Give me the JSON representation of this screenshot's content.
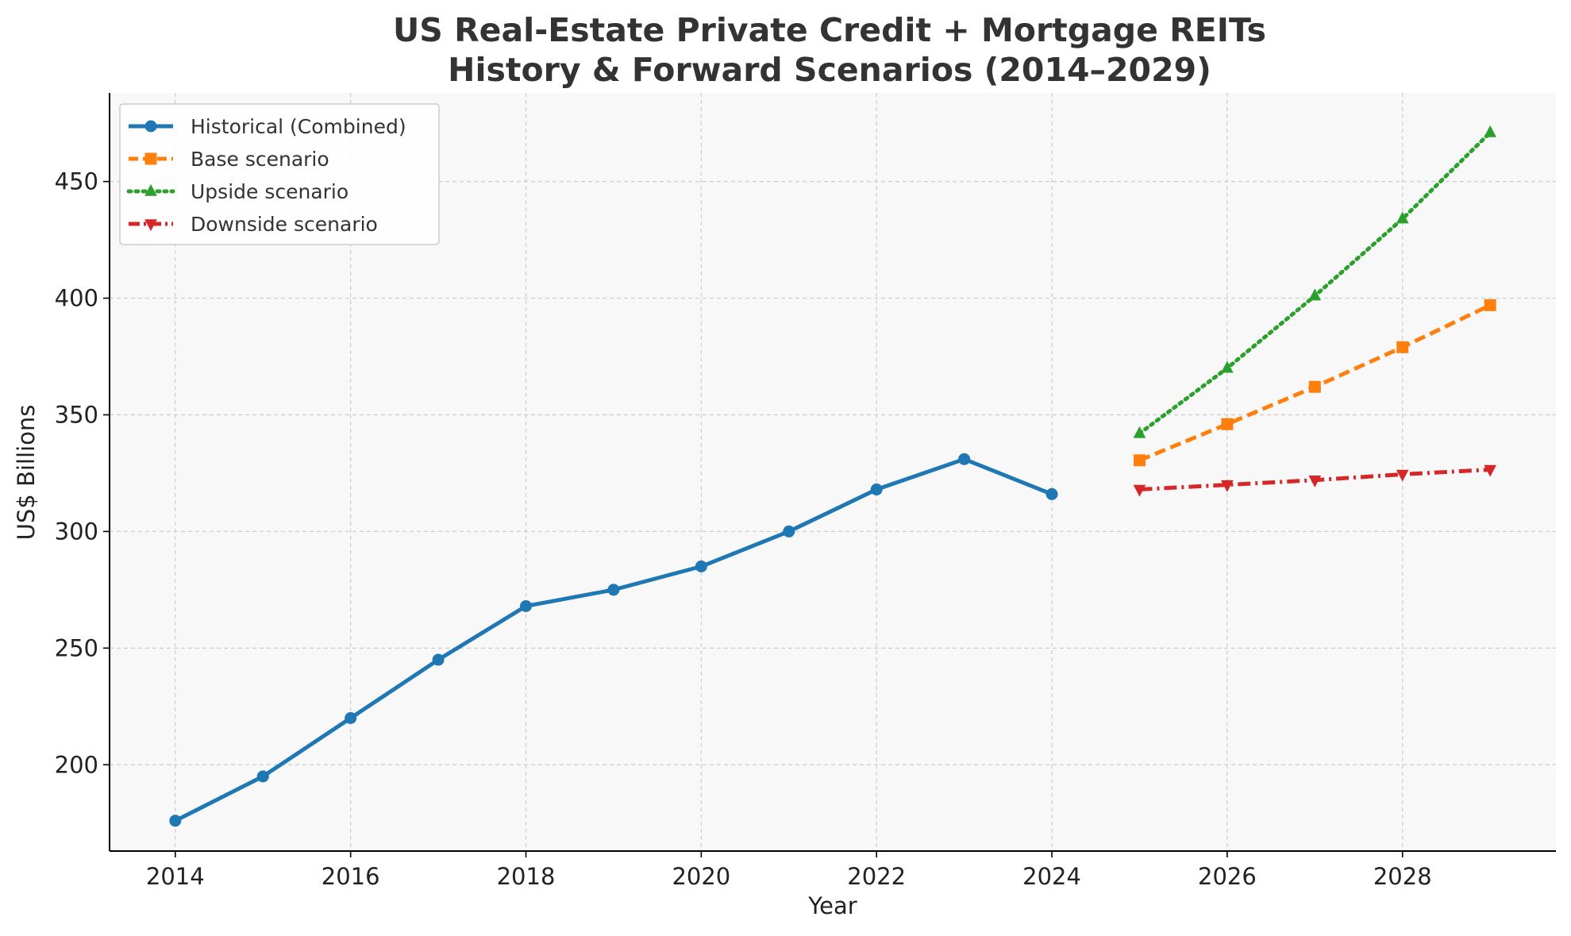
{
  "chart_data": {
    "type": "line",
    "title_line1": "US Real-Estate Private Credit + Mortgage REITs",
    "title_line2": "History & Forward Scenarios (2014–2029)",
    "xlabel": "Year",
    "ylabel": "US$ Billions",
    "xlim": [
      2013.25,
      2029.75
    ],
    "ylim": [
      163,
      488
    ],
    "xticks": [
      2014,
      2016,
      2018,
      2020,
      2022,
      2024,
      2026,
      2028
    ],
    "yticks": [
      200,
      250,
      300,
      350,
      400,
      450
    ],
    "grid": true,
    "legend_position": "top-left",
    "background": "#f8f8f8",
    "series": [
      {
        "name": "Historical (Combined)",
        "color": "#1f77b4",
        "style": "solid",
        "marker": "circle",
        "x": [
          2014,
          2015,
          2016,
          2017,
          2018,
          2019,
          2020,
          2021,
          2022,
          2023,
          2024
        ],
        "values": [
          176,
          195,
          220,
          245,
          268,
          275,
          285,
          300,
          318,
          331,
          316
        ]
      },
      {
        "name": "Base scenario",
        "color": "#ff7f0e",
        "style": "dashed",
        "marker": "square",
        "x": [
          2025,
          2026,
          2027,
          2028,
          2029
        ],
        "values": [
          330.5,
          346,
          362,
          379,
          397
        ]
      },
      {
        "name": "Upside scenario",
        "color": "#2ca02c",
        "style": "dotted",
        "marker": "triangle-up",
        "x": [
          2025,
          2026,
          2027,
          2028,
          2029
        ],
        "values": [
          342,
          370,
          401,
          434,
          471
        ]
      },
      {
        "name": "Downside scenario",
        "color": "#d62728",
        "style": "dashdot",
        "marker": "triangle-down",
        "x": [
          2025,
          2026,
          2027,
          2028,
          2029
        ],
        "values": [
          318,
          320,
          322,
          324.5,
          326.5
        ]
      }
    ]
  }
}
